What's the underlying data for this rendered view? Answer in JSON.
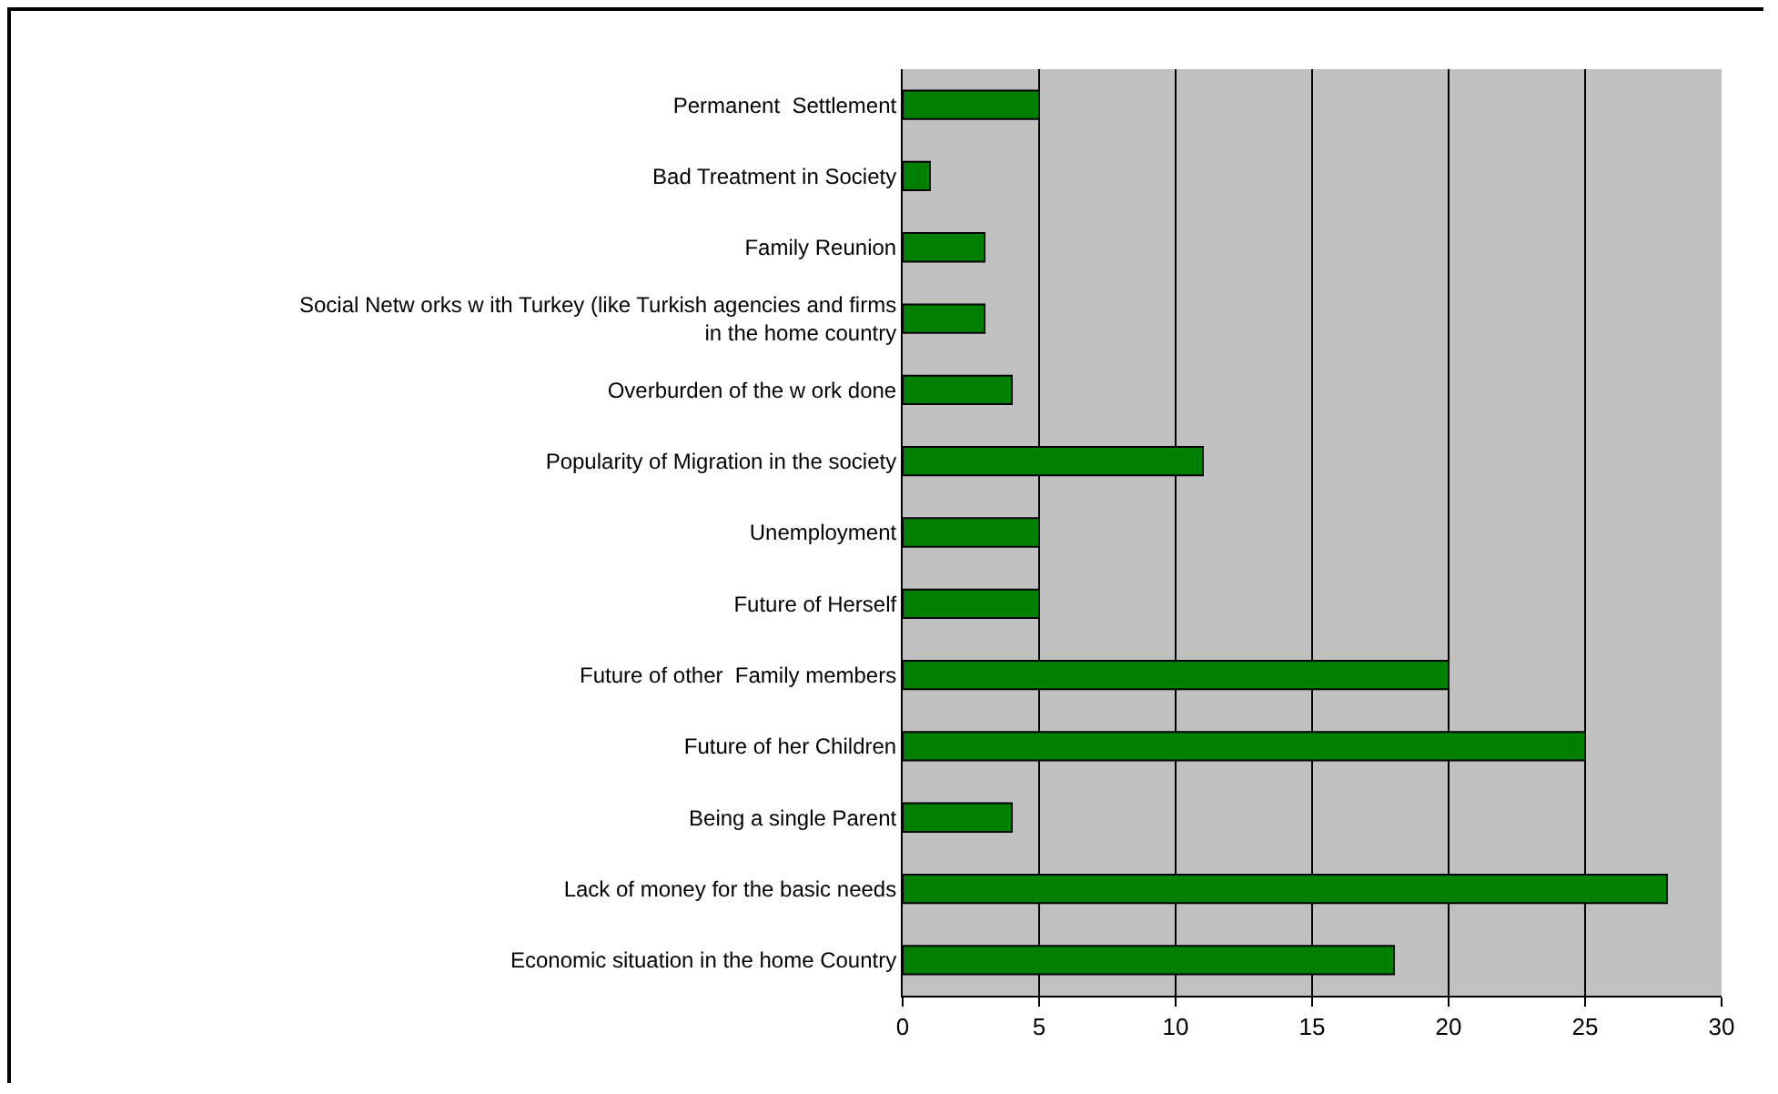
{
  "chart_data": {
    "type": "bar",
    "orientation": "horizontal",
    "categories": [
      "Permanent  Settlement",
      "Bad Treatment in Society",
      "Family Reunion",
      "Social Netw orks w ith Turkey (like Turkish agencies and firms in the home country",
      "Overburden of the w ork done",
      "Popularity of Migration in the society",
      "Unemployment",
      "Future of Herself",
      "Future of other  Family members",
      "Future of her Children",
      "Being a single Parent",
      "Lack of money for the basic needs",
      "Economic situation in the home Country"
    ],
    "values": [
      5,
      1,
      3,
      3,
      4,
      11,
      5,
      5,
      20,
      25,
      4,
      28,
      18
    ],
    "color": "#008000",
    "xlim": [
      0,
      30
    ],
    "xticks": [
      0,
      5,
      10,
      15,
      20,
      25,
      30
    ],
    "grid": "x"
  }
}
